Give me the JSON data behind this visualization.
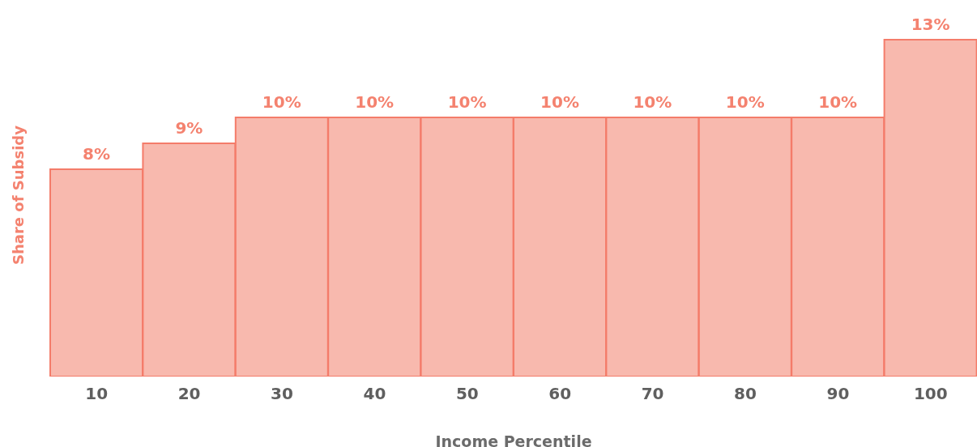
{
  "chart_data": {
    "type": "bar",
    "xlabel": "Income Percentile",
    "ylabel": "Share of Subsidy",
    "categories": [
      "10",
      "20",
      "30",
      "40",
      "50",
      "60",
      "70",
      "80",
      "90",
      "100"
    ],
    "values": [
      8,
      9,
      10,
      10,
      10,
      10,
      10,
      10,
      10,
      13
    ],
    "value_labels": [
      "8%",
      "9%",
      "10%",
      "10%",
      "10%",
      "10%",
      "10%",
      "10%",
      "10%",
      "13%"
    ],
    "color": "#f8b9ae",
    "tick_labels": "x",
    "legend": false
  }
}
